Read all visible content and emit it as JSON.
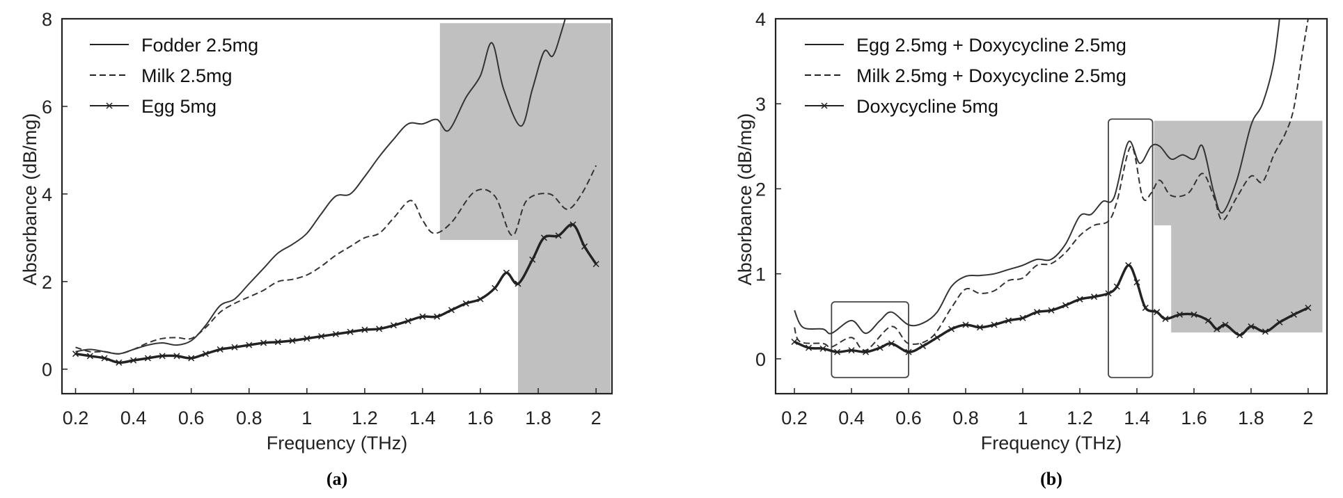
{
  "chart_data": [
    {
      "type": "line",
      "panel_label": "(a)",
      "xlabel": "Frequency (THz)",
      "ylabel": "Absorbance (dB/mg)",
      "xlim": [
        0.153,
        2.055
      ],
      "ylim": [
        -0.56,
        8
      ],
      "xticks": [
        0.2,
        0.4,
        0.6,
        0.8,
        1,
        1.2,
        1.4,
        1.6,
        1.8,
        2
      ],
      "xtick_labels": [
        "0.2",
        "0.4",
        "0.6",
        "0.8",
        "1",
        "1.2",
        "1.4",
        "1.6",
        "1.8",
        "2"
      ],
      "yticks": [
        0,
        2,
        4,
        6,
        8
      ],
      "ytick_labels": [
        "0",
        "2",
        "4",
        "6",
        "8"
      ],
      "grid": false,
      "legend": "top-left",
      "shaded_regions": [
        {
          "x": [
            1.46,
            2.05
          ],
          "y": [
            2.95,
            7.9
          ]
        },
        {
          "x": [
            1.73,
            2.05
          ],
          "y": [
            -0.56,
            2.95
          ]
        }
      ],
      "boxes": [],
      "shade_color": "#c0c0c0",
      "series": [
        {
          "name": "Fodder 2.5mg",
          "style": "solid",
          "x": [
            0.2,
            0.25,
            0.3,
            0.35,
            0.4,
            0.45,
            0.5,
            0.55,
            0.6,
            0.65,
            0.7,
            0.75,
            0.8,
            0.85,
            0.9,
            0.95,
            1.0,
            1.05,
            1.1,
            1.15,
            1.2,
            1.25,
            1.3,
            1.35,
            1.4,
            1.45,
            1.49,
            1.55,
            1.6,
            1.64,
            1.68,
            1.74,
            1.78,
            1.82,
            1.85,
            1.88,
            1.91
          ],
          "y": [
            0.4,
            0.45,
            0.4,
            0.35,
            0.45,
            0.55,
            0.6,
            0.55,
            0.65,
            1.0,
            1.45,
            1.6,
            1.95,
            2.3,
            2.65,
            2.85,
            3.1,
            3.55,
            3.95,
            4.0,
            4.4,
            4.85,
            5.25,
            5.6,
            5.6,
            5.7,
            5.45,
            6.2,
            6.7,
            7.45,
            6.4,
            5.55,
            6.4,
            7.25,
            7.15,
            7.7,
            8.4
          ]
        },
        {
          "name": "Milk 2.5mg",
          "style": "dashed",
          "x": [
            0.2,
            0.25,
            0.3,
            0.35,
            0.4,
            0.45,
            0.5,
            0.55,
            0.6,
            0.65,
            0.7,
            0.75,
            0.8,
            0.85,
            0.9,
            0.95,
            1.0,
            1.05,
            1.1,
            1.15,
            1.2,
            1.25,
            1.3,
            1.36,
            1.4,
            1.44,
            1.5,
            1.58,
            1.65,
            1.71,
            1.76,
            1.84,
            1.9,
            1.95,
            2.0
          ],
          "y": [
            0.5,
            0.4,
            0.4,
            0.35,
            0.45,
            0.6,
            0.7,
            0.72,
            0.7,
            0.95,
            1.3,
            1.5,
            1.65,
            1.8,
            2.0,
            2.05,
            2.15,
            2.35,
            2.6,
            2.8,
            3.0,
            3.1,
            3.45,
            3.85,
            3.4,
            3.1,
            3.35,
            4.05,
            3.95,
            3.05,
            3.85,
            4.0,
            3.65,
            4.0,
            4.65
          ]
        },
        {
          "name": "Egg 5mg",
          "style": "solid-x",
          "x": [
            0.2,
            0.25,
            0.3,
            0.35,
            0.4,
            0.45,
            0.5,
            0.55,
            0.6,
            0.65,
            0.7,
            0.75,
            0.8,
            0.85,
            0.9,
            0.95,
            1.0,
            1.05,
            1.1,
            1.15,
            1.2,
            1.25,
            1.3,
            1.35,
            1.4,
            1.45,
            1.5,
            1.55,
            1.6,
            1.65,
            1.69,
            1.73,
            1.78,
            1.82,
            1.87,
            1.92,
            1.96,
            2.0
          ],
          "y": [
            0.35,
            0.3,
            0.25,
            0.15,
            0.2,
            0.25,
            0.3,
            0.3,
            0.25,
            0.35,
            0.45,
            0.5,
            0.55,
            0.6,
            0.62,
            0.65,
            0.7,
            0.75,
            0.8,
            0.85,
            0.9,
            0.92,
            1.0,
            1.1,
            1.2,
            1.2,
            1.35,
            1.5,
            1.6,
            1.85,
            2.2,
            1.95,
            2.5,
            3.0,
            3.05,
            3.3,
            2.8,
            2.4
          ]
        }
      ]
    },
    {
      "type": "line",
      "panel_label": "(b)",
      "xlabel": "Frequency (THz)",
      "ylabel": "Absorbance (dB/mg)",
      "xlim": [
        0.134,
        2.066
      ],
      "ylim": [
        -0.41,
        4
      ],
      "xticks": [
        0.2,
        0.4,
        0.6,
        0.8,
        1,
        1.2,
        1.4,
        1.6,
        1.8,
        2
      ],
      "xtick_labels": [
        "0.2",
        "0.4",
        "0.6",
        "0.8",
        "1",
        "1.2",
        "1.4",
        "1.6",
        "1.8",
        "2"
      ],
      "yticks": [
        0,
        1,
        2,
        3,
        4
      ],
      "ytick_labels": [
        "0",
        "1",
        "2",
        "3",
        "4"
      ],
      "grid": false,
      "legend": "top-left",
      "shaded_regions": [
        {
          "x": [
            1.46,
            2.05
          ],
          "y": [
            1.57,
            2.8
          ]
        },
        {
          "x": [
            1.52,
            2.05
          ],
          "y": [
            0.31,
            1.57
          ]
        }
      ],
      "boxes": [
        {
          "x": [
            0.33,
            0.6
          ],
          "y": [
            -0.22,
            0.67
          ]
        },
        {
          "x": [
            1.3,
            1.455
          ],
          "y": [
            -0.22,
            2.82
          ]
        }
      ],
      "shade_color": "#c0c0c0",
      "series": [
        {
          "name": "Egg 2.5mg + Doxycycline 2.5mg",
          "style": "solid",
          "x": [
            0.2,
            0.23,
            0.3,
            0.33,
            0.4,
            0.45,
            0.5,
            0.54,
            0.6,
            0.65,
            0.7,
            0.75,
            0.8,
            0.85,
            0.9,
            0.95,
            1.0,
            1.05,
            1.1,
            1.15,
            1.2,
            1.24,
            1.28,
            1.32,
            1.37,
            1.41,
            1.45,
            1.48,
            1.52,
            1.56,
            1.6,
            1.63,
            1.67,
            1.7,
            1.75,
            1.8,
            1.84,
            1.88,
            1.91
          ],
          "y": [
            0.57,
            0.37,
            0.35,
            0.3,
            0.45,
            0.3,
            0.45,
            0.55,
            0.4,
            0.42,
            0.55,
            0.85,
            0.97,
            0.98,
            1.0,
            1.05,
            1.1,
            1.17,
            1.17,
            1.35,
            1.68,
            1.7,
            1.85,
            1.9,
            2.55,
            2.3,
            2.5,
            2.5,
            2.35,
            2.4,
            2.35,
            2.5,
            1.95,
            1.72,
            2.1,
            2.75,
            3.0,
            3.5,
            4.3
          ]
        },
        {
          "name": "Milk 2.5mg + Doxycycline 2.5mg",
          "style": "dashed",
          "x": [
            0.2,
            0.22,
            0.3,
            0.33,
            0.4,
            0.45,
            0.54,
            0.6,
            0.68,
            0.75,
            0.8,
            0.85,
            0.9,
            0.95,
            1.0,
            1.05,
            1.1,
            1.15,
            1.2,
            1.25,
            1.3,
            1.33,
            1.38,
            1.42,
            1.45,
            1.48,
            1.52,
            1.58,
            1.63,
            1.67,
            1.7,
            1.75,
            1.8,
            1.84,
            1.88,
            1.92,
            1.95,
            1.98,
            2.0
          ],
          "y": [
            0.37,
            0.2,
            0.18,
            0.14,
            0.25,
            0.1,
            0.38,
            0.18,
            0.25,
            0.6,
            0.82,
            0.77,
            0.8,
            0.92,
            0.95,
            1.1,
            1.12,
            1.25,
            1.45,
            1.57,
            1.62,
            1.85,
            2.5,
            1.9,
            1.95,
            2.1,
            1.92,
            1.95,
            2.18,
            1.9,
            1.63,
            1.9,
            2.15,
            2.08,
            2.4,
            2.65,
            2.95,
            3.6,
            4.0
          ]
        },
        {
          "name": "Doxycycline 5mg",
          "style": "solid-x",
          "x": [
            0.2,
            0.25,
            0.3,
            0.35,
            0.4,
            0.45,
            0.5,
            0.54,
            0.6,
            0.65,
            0.7,
            0.75,
            0.8,
            0.85,
            0.9,
            0.95,
            1.0,
            1.05,
            1.1,
            1.15,
            1.2,
            1.25,
            1.3,
            1.33,
            1.37,
            1.4,
            1.43,
            1.47,
            1.5,
            1.55,
            1.6,
            1.65,
            1.68,
            1.71,
            1.76,
            1.8,
            1.85,
            1.9,
            1.95,
            2.0
          ],
          "y": [
            0.2,
            0.13,
            0.12,
            0.08,
            0.1,
            0.08,
            0.13,
            0.18,
            0.08,
            0.15,
            0.25,
            0.35,
            0.4,
            0.37,
            0.4,
            0.45,
            0.48,
            0.55,
            0.57,
            0.63,
            0.7,
            0.73,
            0.77,
            0.85,
            1.1,
            0.9,
            0.6,
            0.55,
            0.47,
            0.52,
            0.52,
            0.45,
            0.35,
            0.4,
            0.28,
            0.38,
            0.32,
            0.43,
            0.52,
            0.6
          ]
        }
      ]
    }
  ]
}
